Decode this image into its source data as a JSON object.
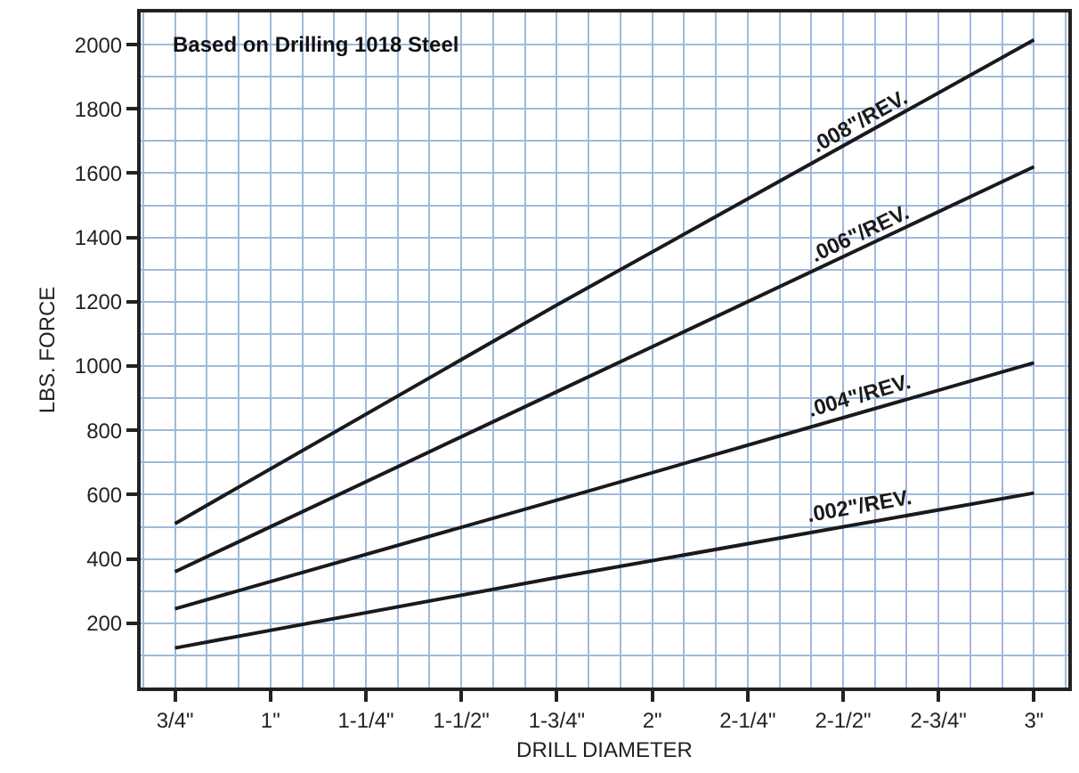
{
  "chart_data": {
    "type": "line",
    "xlabel": "DRILL DIAMETER",
    "ylabel": "LBS. FORCE",
    "annotations": [
      "Based on Drilling 1018 Steel"
    ],
    "x": [
      0.75,
      1.75,
      3
    ],
    "series": [
      {
        "name": ".008\"/REV.",
        "color": "#1a1a1a",
        "values": [
          510,
          1190,
          2015
        ]
      },
      {
        "name": ".006\"/REV.",
        "color": "#1a1a1a",
        "values": [
          360,
          920,
          1620
        ]
      },
      {
        "name": ".004\"/REV.",
        "color": "#1a1a1a",
        "values": [
          245,
          583,
          1010
        ]
      },
      {
        "name": ".002\"/REV.",
        "color": "#1a1a1a",
        "values": [
          123,
          342,
          605
        ]
      }
    ],
    "xlim": [
      0.66,
      3.09
    ],
    "ylim": [
      0,
      2100
    ],
    "xticks": [
      {
        "value": 0.75,
        "label": "3/4\""
      },
      {
        "value": 1,
        "label": "1\""
      },
      {
        "value": 1.25,
        "label": "1-1/4\""
      },
      {
        "value": 1.5,
        "label": "1-1/2\""
      },
      {
        "value": 1.75,
        "label": "1-3/4\""
      },
      {
        "value": 2,
        "label": "2\""
      },
      {
        "value": 2.25,
        "label": "2-1/4\""
      },
      {
        "value": 2.5,
        "label": "2-1/2\""
      },
      {
        "value": 2.75,
        "label": "2-3/4\""
      },
      {
        "value": 3,
        "label": "3\""
      }
    ],
    "yticks": [
      200,
      400,
      600,
      800,
      1000,
      1200,
      1400,
      1600,
      1800,
      2000
    ],
    "grid": true,
    "legend": false,
    "marker": "none",
    "line_style": "solid"
  }
}
